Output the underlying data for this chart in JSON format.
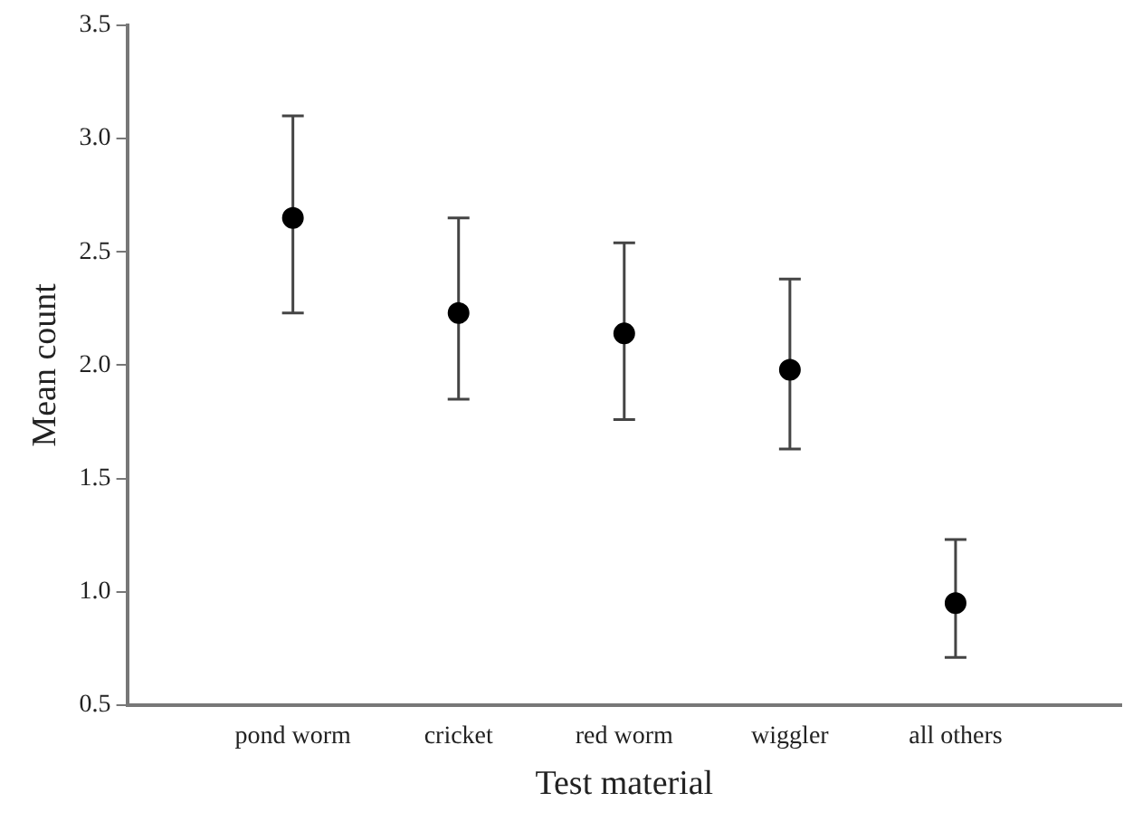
{
  "chart_data": {
    "type": "scatter",
    "xlabel": "Test material",
    "ylabel": "Mean count",
    "categories": [
      "pond worm",
      "cricket",
      "red worm",
      "wiggler",
      "all others"
    ],
    "series": [
      {
        "color": "#000000",
        "values": [
          2.65,
          2.23,
          2.14,
          1.98,
          0.95
        ],
        "errors": [
          [
            2.23,
            3.1
          ],
          [
            1.85,
            2.65
          ],
          [
            1.76,
            2.54
          ],
          [
            1.63,
            2.38
          ],
          [
            0.71,
            1.23
          ]
        ]
      }
    ],
    "ylim": [
      0.5,
      3.5
    ],
    "yticks": [
      {
        "value": 0.5,
        "label": "0.5"
      },
      {
        "value": 1,
        "label": "1.0"
      },
      {
        "value": 1.5,
        "label": "1.5"
      },
      {
        "value": 2,
        "label": "2.0"
      },
      {
        "value": 2.5,
        "label": "2.5"
      },
      {
        "value": 3,
        "label": "3.0"
      },
      {
        "value": 3.5,
        "label": "3.5"
      }
    ],
    "grid": false,
    "legend": false,
    "marker": "circle"
  }
}
